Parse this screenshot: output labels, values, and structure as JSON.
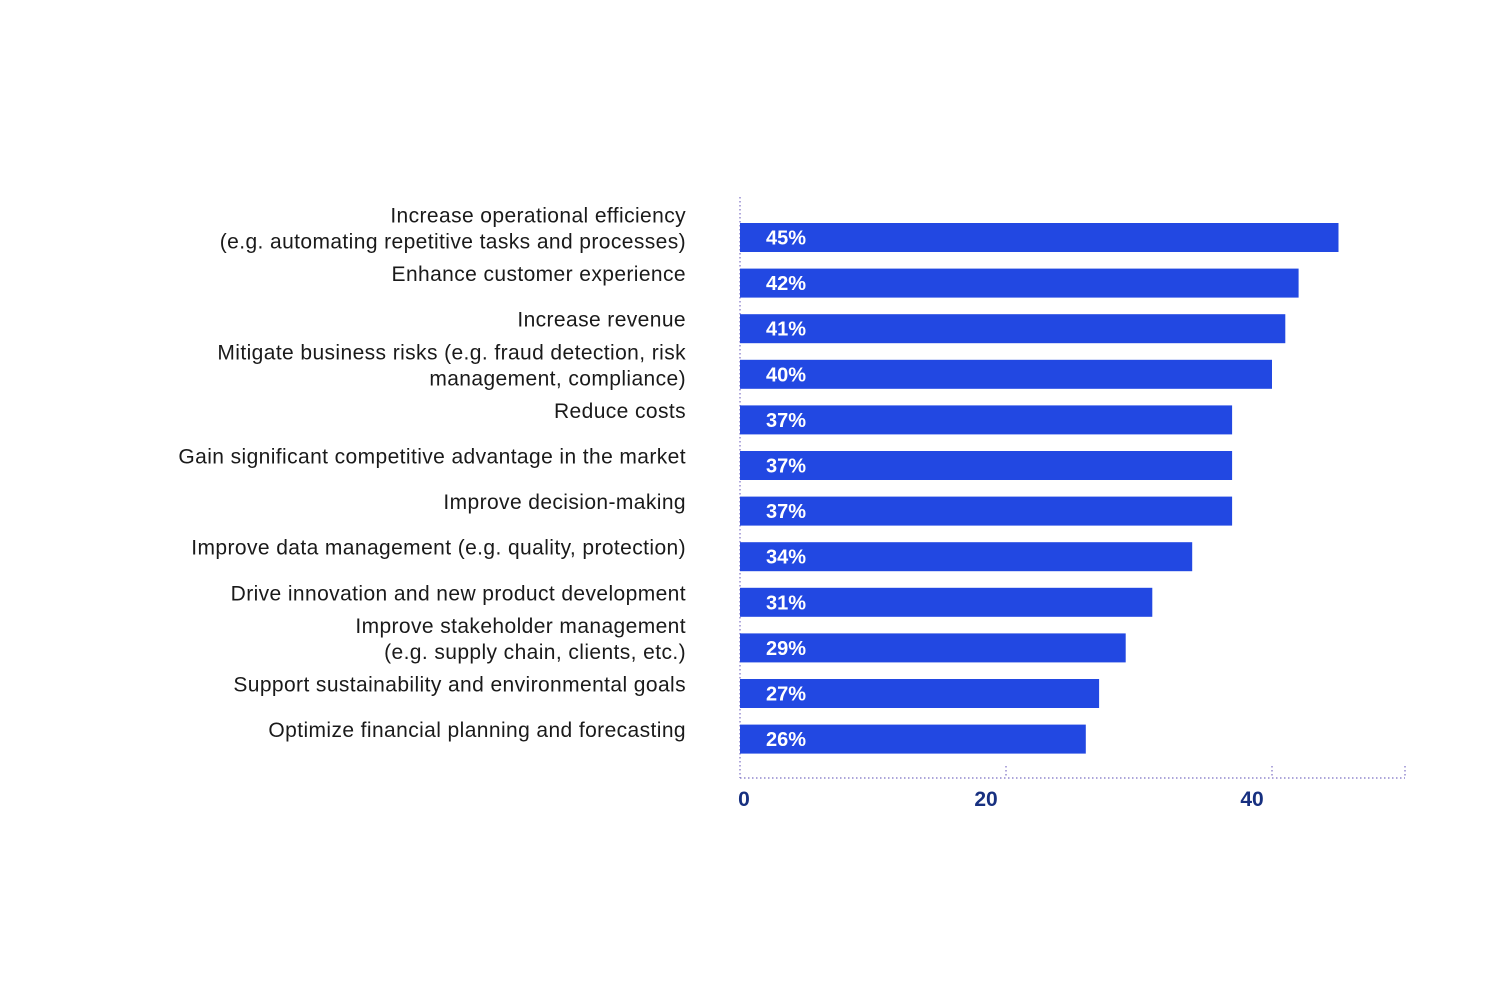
{
  "chart_data": {
    "type": "bar",
    "orientation": "horizontal",
    "title": "",
    "xlabel": "",
    "ylabel": "",
    "unit": "%",
    "xlim": [
      0,
      50
    ],
    "xticks": [
      0,
      20,
      40
    ],
    "grid": false,
    "categories": [
      [
        "Increase operational efficiency",
        "(e.g. automating repetitive tasks and processes)"
      ],
      [
        "Enhance customer experience"
      ],
      [
        "Increase revenue"
      ],
      [
        "Mitigate business risks (e.g. fraud detection, risk",
        "management, compliance)"
      ],
      [
        "Reduce costs"
      ],
      [
        "Gain significant competitive advantage in the market"
      ],
      [
        "Improve decision-making"
      ],
      [
        "Improve data management (e.g. quality, protection)"
      ],
      [
        "Drive innovation and new product development"
      ],
      [
        "Improve stakeholder management",
        "(e.g. supply chain, clients, etc.)"
      ],
      [
        "Support sustainability and environmental goals"
      ],
      [
        "Optimize financial planning and forecasting"
      ]
    ],
    "values": [
      45,
      42,
      41,
      40,
      37,
      37,
      37,
      34,
      31,
      29,
      27,
      26
    ],
    "data_labels": [
      "45%",
      "42%",
      "41%",
      "40%",
      "37%",
      "37%",
      "37%",
      "34%",
      "31%",
      "29%",
      "27%",
      "26%"
    ],
    "colors": {
      "bar": "#2248e2",
      "bar_label": "#ffffff",
      "tick_label": "#173080",
      "axis": "#7b6fc4",
      "category_label": "#1a1a1a"
    }
  }
}
